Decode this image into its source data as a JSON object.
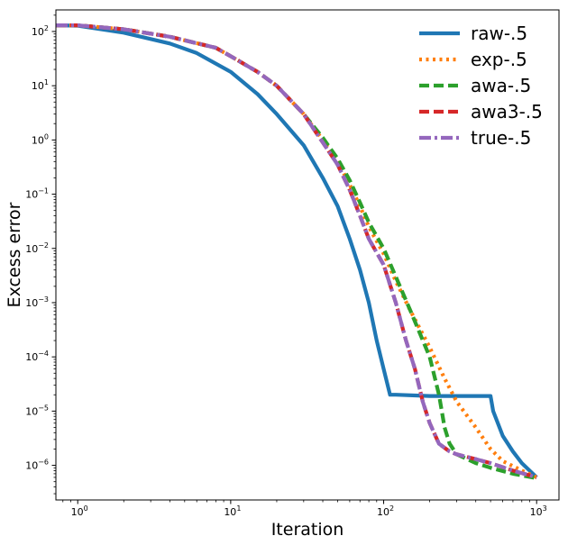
{
  "chart_data": {
    "type": "line",
    "xlabel": "Iteration",
    "ylabel": "Excess error",
    "xscale": "log",
    "yscale": "log",
    "xlim": [
      0.72,
      1400
    ],
    "ylim": [
      2.3e-07,
      250
    ],
    "x_ticks": [
      {
        "value": 1,
        "base": "10",
        "exp": "0"
      },
      {
        "value": 10,
        "base": "10",
        "exp": "1"
      },
      {
        "value": 100,
        "base": "10",
        "exp": "2"
      },
      {
        "value": 1000,
        "base": "10",
        "exp": "3"
      }
    ],
    "y_ticks": [
      {
        "value": 1e-06,
        "base": "10",
        "exp": "−6"
      },
      {
        "value": 1e-05,
        "base": "10",
        "exp": "−5"
      },
      {
        "value": 0.0001,
        "base": "10",
        "exp": "−4"
      },
      {
        "value": 0.001,
        "base": "10",
        "exp": "−3"
      },
      {
        "value": 0.01,
        "base": "10",
        "exp": "−2"
      },
      {
        "value": 0.1,
        "base": "10",
        "exp": "−1"
      },
      {
        "value": 1,
        "base": "10",
        "exp": "0"
      },
      {
        "value": 10,
        "base": "10",
        "exp": "1"
      },
      {
        "value": 100,
        "base": "10",
        "exp": "2"
      }
    ],
    "grid": false,
    "legend_position": "top-right",
    "series": [
      {
        "name": "raw-.5",
        "color": "#1f77b4",
        "dash": "solid",
        "points": [
          [
            0.72,
            130
          ],
          [
            1,
            128
          ],
          [
            2,
            95
          ],
          [
            4,
            60
          ],
          [
            6,
            40
          ],
          [
            10,
            18
          ],
          [
            15,
            7
          ],
          [
            20,
            3
          ],
          [
            30,
            0.8
          ],
          [
            40,
            0.2
          ],
          [
            50,
            0.06
          ],
          [
            60,
            0.015
          ],
          [
            70,
            0.004
          ],
          [
            80,
            0.001
          ],
          [
            90,
            0.0002
          ],
          [
            100,
            6e-05
          ],
          [
            110,
            2e-05
          ],
          [
            120,
            2e-05
          ],
          [
            200,
            1.9e-05
          ],
          [
            300,
            1.9e-05
          ],
          [
            400,
            1.9e-05
          ],
          [
            500,
            1.9e-05
          ],
          [
            520,
            1e-05
          ],
          [
            600,
            3.5e-06
          ],
          [
            700,
            1.8e-06
          ],
          [
            800,
            1.1e-06
          ],
          [
            1000,
            6e-07
          ]
        ]
      },
      {
        "name": "exp-.5",
        "color": "#ff7f0e",
        "dash": "dotted",
        "points": [
          [
            0.72,
            130
          ],
          [
            1,
            130
          ],
          [
            2,
            110
          ],
          [
            4,
            80
          ],
          [
            8,
            50
          ],
          [
            10,
            35
          ],
          [
            15,
            18
          ],
          [
            20,
            10
          ],
          [
            30,
            3
          ],
          [
            40,
            1
          ],
          [
            50,
            0.4
          ],
          [
            60,
            0.15
          ],
          [
            70,
            0.06
          ],
          [
            80,
            0.025
          ],
          [
            100,
            0.008
          ],
          [
            120,
            0.0025
          ],
          [
            150,
            0.0007
          ],
          [
            200,
            0.00015
          ],
          [
            250,
            4e-05
          ],
          [
            300,
            1.5e-05
          ],
          [
            400,
            5e-06
          ],
          [
            500,
            2e-06
          ],
          [
            600,
            1.2e-06
          ],
          [
            800,
            8e-07
          ],
          [
            1000,
            6e-07
          ]
        ]
      },
      {
        "name": "awa-.5",
        "color": "#2ca02c",
        "dash": "dashed",
        "points": [
          [
            0.72,
            130
          ],
          [
            1,
            130
          ],
          [
            2,
            110
          ],
          [
            4,
            80
          ],
          [
            8,
            50
          ],
          [
            10,
            35
          ],
          [
            15,
            18
          ],
          [
            20,
            10
          ],
          [
            30,
            3
          ],
          [
            40,
            1.1
          ],
          [
            50,
            0.45
          ],
          [
            60,
            0.18
          ],
          [
            70,
            0.07
          ],
          [
            80,
            0.03
          ],
          [
            100,
            0.01
          ],
          [
            120,
            0.003
          ],
          [
            150,
            0.0007
          ],
          [
            200,
            0.0001
          ],
          [
            230,
            2e-05
          ],
          [
            250,
            5e-06
          ],
          [
            270,
            2.5e-06
          ],
          [
            300,
            1.6e-06
          ],
          [
            400,
            1.1e-06
          ],
          [
            500,
            9e-07
          ],
          [
            700,
            7e-07
          ],
          [
            1000,
            5.8e-07
          ]
        ]
      },
      {
        "name": "awa3-.5",
        "color": "#d62728",
        "dash": "dashed",
        "points": [
          [
            0.72,
            130
          ],
          [
            1,
            130
          ],
          [
            2,
            110
          ],
          [
            4,
            80
          ],
          [
            8,
            50
          ],
          [
            10,
            35
          ],
          [
            15,
            18
          ],
          [
            20,
            10
          ],
          [
            30,
            3
          ],
          [
            40,
            0.9
          ],
          [
            50,
            0.35
          ],
          [
            60,
            0.12
          ],
          [
            70,
            0.04
          ],
          [
            80,
            0.015
          ],
          [
            100,
            0.005
          ],
          [
            120,
            0.001
          ],
          [
            140,
            0.0002
          ],
          [
            160,
            6e-05
          ],
          [
            180,
            1.5e-05
          ],
          [
            200,
            6e-06
          ],
          [
            230,
            2.5e-06
          ],
          [
            270,
            1.8e-06
          ],
          [
            300,
            1.6e-06
          ],
          [
            400,
            1.3e-06
          ],
          [
            500,
            1.1e-06
          ],
          [
            700,
            8e-07
          ],
          [
            1000,
            6e-07
          ]
        ]
      },
      {
        "name": "true-.5",
        "color": "#9467bd",
        "dash": "dashdot",
        "points": [
          [
            0.72,
            130
          ],
          [
            1,
            130
          ],
          [
            2,
            110
          ],
          [
            4,
            80
          ],
          [
            8,
            50
          ],
          [
            10,
            35
          ],
          [
            15,
            18
          ],
          [
            20,
            10
          ],
          [
            30,
            3
          ],
          [
            40,
            0.9
          ],
          [
            50,
            0.35
          ],
          [
            60,
            0.12
          ],
          [
            70,
            0.04
          ],
          [
            80,
            0.015
          ],
          [
            100,
            0.005
          ],
          [
            120,
            0.001
          ],
          [
            140,
            0.0002
          ],
          [
            160,
            6e-05
          ],
          [
            180,
            1.5e-05
          ],
          [
            200,
            6e-06
          ],
          [
            230,
            2.5e-06
          ],
          [
            270,
            1.8e-06
          ],
          [
            300,
            1.6e-06
          ],
          [
            400,
            1.3e-06
          ],
          [
            500,
            1.1e-06
          ],
          [
            700,
            8e-07
          ],
          [
            1000,
            6e-07
          ]
        ]
      }
    ]
  }
}
